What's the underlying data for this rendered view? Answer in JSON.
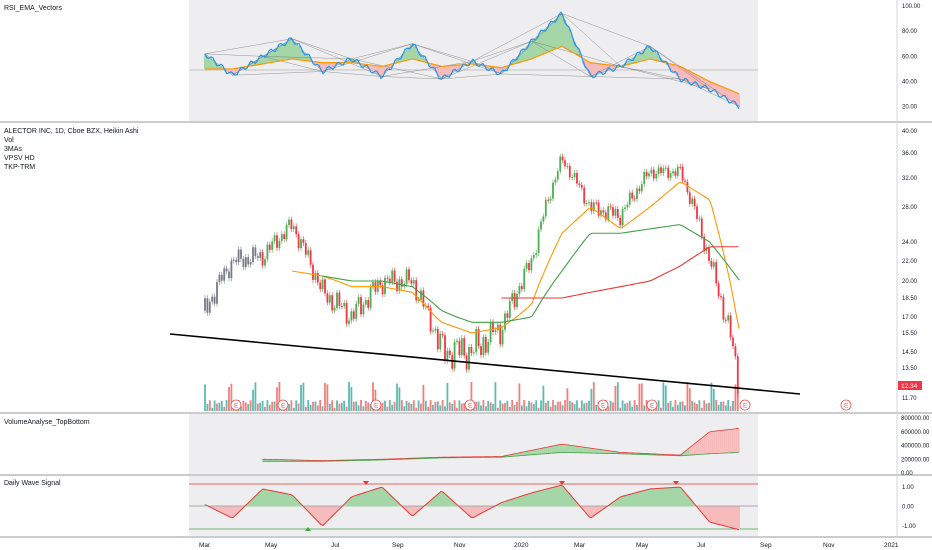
{
  "header": {
    "symbol": "ALECTOR INC, 1D, Cboe BZX, Heikin Ashi",
    "indicators": [
      "Vol",
      "3MAs",
      "VPSV HD",
      "TKP-TRM"
    ]
  },
  "panes": {
    "rsi": {
      "title": "RSI_EMA_Vectors",
      "ticks": [
        "100.00",
        "80.00",
        "60.00",
        "40.00",
        "20.00"
      ]
    },
    "price": {
      "ticks": [
        "40.00",
        "36.00",
        "32.00",
        "28.00",
        "24.00",
        "22.00",
        "20.00",
        "18.50",
        "17.00",
        "15.50",
        "14.50",
        "13.50",
        "11.70"
      ],
      "last_price": "12.34"
    },
    "volume_analyse": {
      "title": "VolumeAnalyse_TopBottom",
      "ticks": [
        "800000.00",
        "600000.00",
        "400000.00",
        "200000.00",
        "0.00"
      ]
    },
    "wave": {
      "title": "Daily Wave Signal",
      "ticks": [
        "1.00",
        "0.00",
        "-1.00"
      ]
    }
  },
  "x_axis": {
    "labels": [
      "Mar",
      "May",
      "Jul",
      "Sep",
      "Nov",
      "2020",
      "Mar",
      "May",
      "Jul",
      "Sep",
      "Nov",
      "2021"
    ]
  },
  "earnings_marker": "E",
  "colors": {
    "up": "#26a69a",
    "down": "#ef5350",
    "ha_green": "#4caf50",
    "ha_red": "#f23645",
    "ha_gray": "#787b86",
    "ma_orange": "#ff9800",
    "ma_green": "#43a047",
    "ma_red": "#e53935",
    "rsi_blue": "#2196f3",
    "trend": "#000000",
    "last_price_bg": "#f23645"
  },
  "chart_data": [
    {
      "type": "line",
      "title": "RSI_EMA_Vectors",
      "ylim": [
        15,
        100
      ],
      "x": [
        "2019-02",
        "2019-03",
        "2019-04",
        "2019-05",
        "2019-06",
        "2019-07",
        "2019-08",
        "2019-09",
        "2019-10",
        "2019-11",
        "2019-12",
        "2020-01",
        "2020-02",
        "2020-03",
        "2020-04",
        "2020-05",
        "2020-06",
        "2020-07",
        "2020-08"
      ],
      "series": [
        {
          "values": [
            62,
            45,
            60,
            74,
            48,
            58,
            44,
            70,
            42,
            56,
            46,
            72,
            94,
            44,
            52,
            68,
            42,
            34,
            20
          ]
        },
        {
          "values": [
            50,
            50,
            54,
            58,
            55,
            55,
            52,
            58,
            52,
            54,
            51,
            58,
            68,
            55,
            52,
            58,
            52,
            40,
            30
          ]
        }
      ]
    },
    {
      "type": "line",
      "title": "ALECTOR INC, 1D, Cboe BZX, Heikin Ashi",
      "ylim": [
        11,
        40
      ],
      "x": [
        "2019-02",
        "2019-03",
        "2019-04",
        "2019-05",
        "2019-06",
        "2019-07",
        "2019-08",
        "2019-09",
        "2019-10",
        "2019-11",
        "2019-12",
        "2020-01",
        "2020-02",
        "2020-03",
        "2020-04",
        "2020-05",
        "2020-06",
        "2020-07",
        "2020-08"
      ],
      "series": [
        {
          "name": "close",
          "values": [
            17.5,
            22,
            22.5,
            26,
            19,
            17,
            20,
            20,
            14.5,
            14.5,
            16,
            22,
            35,
            28,
            27,
            33,
            33,
            22,
            12.34
          ]
        },
        {
          "values": [
            null,
            null,
            null,
            21,
            20.5,
            19.5,
            19.5,
            19,
            16.5,
            15.5,
            16,
            18,
            25,
            28,
            25.5,
            28,
            31.5,
            29,
            15.5
          ]
        },
        {
          "values": [
            null,
            null,
            null,
            null,
            20.5,
            20,
            20,
            19.5,
            17.5,
            16.5,
            16.5,
            17,
            21,
            25,
            25,
            25.5,
            26,
            24,
            20
          ]
        },
        {
          "values": [
            null,
            null,
            null,
            null,
            null,
            null,
            null,
            null,
            null,
            null,
            18.5,
            18.5,
            18.5,
            19,
            19.5,
            20,
            21.5,
            23.5,
            23.5
          ]
        }
      ]
    },
    {
      "type": "area",
      "title": "VolumeAnalyse_TopBottom",
      "ylim": [
        0,
        800000
      ],
      "x": [
        "2019-04",
        "2019-06",
        "2019-08",
        "2019-10",
        "2019-12",
        "2020-02",
        "2020-04",
        "2020-06",
        "2020-07",
        "2020-08"
      ],
      "series": [
        {
          "values": [
            200000,
            180000,
            200000,
            230000,
            240000,
            420000,
            300000,
            260000,
            600000,
            650000
          ]
        },
        {
          "values": [
            170000,
            170000,
            190000,
            220000,
            230000,
            300000,
            280000,
            250000,
            280000,
            300000
          ]
        }
      ]
    },
    {
      "type": "line",
      "title": "Daily Wave Signal",
      "ylim": [
        -1.5,
        1.5
      ],
      "x": [
        "2019-02",
        "2019-03",
        "2019-04",
        "2019-05",
        "2019-06",
        "2019-07",
        "2019-08",
        "2019-09",
        "2019-10",
        "2019-11",
        "2019-12",
        "2020-01",
        "2020-02",
        "2020-03",
        "2020-04",
        "2020-05",
        "2020-06",
        "2020-07",
        "2020-08"
      ],
      "series": [
        {
          "values": [
            0.1,
            -0.6,
            0.9,
            0.6,
            -1.0,
            0.5,
            1.0,
            -0.5,
            0.8,
            -0.6,
            0.2,
            0.7,
            1.1,
            -0.6,
            0.5,
            0.9,
            1.0,
            -0.8,
            -1.2
          ]
        }
      ]
    }
  ]
}
